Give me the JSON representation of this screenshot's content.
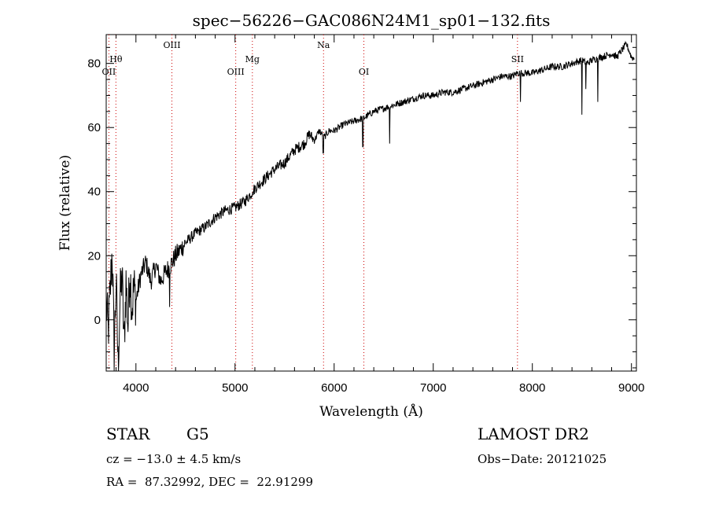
{
  "chart_data": {
    "type": "line",
    "title": "spec−56226−GAC086N24M1_sp01−132.fits",
    "xlabel": "Wavelength (Å)",
    "ylabel": "Flux (relative)",
    "xlim": [
      3700,
      9050
    ],
    "ylim": [
      -16,
      89
    ],
    "xticks": [
      4000,
      5000,
      6000,
      7000,
      8000,
      9000
    ],
    "yticks": [
      0,
      20,
      40,
      60,
      80
    ],
    "xtick_labels": [
      "4000",
      "5000",
      "6000",
      "7000",
      "8000",
      "9000"
    ],
    "ytick_labels": [
      "0",
      "20",
      "40",
      "60",
      "80"
    ],
    "line_color": "#000000",
    "marker_color": "#cc0000",
    "series": [
      {
        "x": [
          3700,
          3720,
          3740,
          3760,
          3780,
          3800,
          3820,
          3840,
          3860,
          3880,
          3900,
          3920,
          3940,
          3960,
          3980,
          4000,
          4050,
          4100,
          4150,
          4200,
          4250,
          4300,
          4350,
          4400,
          4450,
          4500,
          4600,
          4700,
          4800,
          4900,
          5000,
          5100,
          5200,
          5300,
          5400,
          5500,
          5600,
          5700,
          5750,
          5800,
          5850,
          5900,
          5950,
          6000,
          6100,
          6200,
          6300,
          6400,
          6500,
          6600,
          6700,
          6800,
          6900,
          7000,
          7100,
          7200,
          7300,
          7400,
          7500,
          7600,
          7700,
          7800,
          7850,
          7900,
          8000,
          8100,
          8200,
          8300,
          8400,
          8500,
          8550,
          8600,
          8700,
          8800,
          8850,
          8900,
          8950,
          9000,
          9050
        ],
        "y": [
          5,
          -4,
          8,
          22,
          -10,
          12,
          -14,
          6,
          14,
          -8,
          12,
          -2,
          16,
          4,
          10,
          6,
          14,
          18,
          12,
          17,
          12,
          15,
          17,
          20,
          22,
          24,
          27,
          29,
          32,
          34,
          35,
          37,
          41,
          44,
          47,
          49,
          53,
          55,
          58,
          56,
          59,
          57,
          59,
          59,
          61,
          62,
          63,
          65,
          66,
          67,
          68,
          69,
          70,
          70,
          71,
          71,
          72,
          73,
          74,
          75,
          76,
          76,
          77,
          77,
          77,
          78,
          79,
          79,
          80,
          81,
          80,
          81,
          82,
          83,
          82,
          84,
          86,
          82,
          81
        ]
      }
    ],
    "absorption_dips": [
      {
        "x": 4340,
        "y": 4
      },
      {
        "x": 5180,
        "y": 40
      },
      {
        "x": 5890,
        "y": 52
      },
      {
        "x": 6290,
        "y": 54
      },
      {
        "x": 6560,
        "y": 55
      },
      {
        "x": 7880,
        "y": 68
      },
      {
        "x": 8500,
        "y": 64
      },
      {
        "x": 8540,
        "y": 72
      },
      {
        "x": 8660,
        "y": 68
      }
    ],
    "line_markers": [
      {
        "label": "Hθ",
        "x": 3798,
        "row": 1
      },
      {
        "label": "OII",
        "x": 3727,
        "row": 0
      },
      {
        "label": "OIII",
        "x": 4363,
        "row": 2
      },
      {
        "label": "OIII",
        "x": 5007,
        "row": 0
      },
      {
        "label": "Mg",
        "x": 5175,
        "row": 1
      },
      {
        "label": "Na",
        "x": 5893,
        "row": 2
      },
      {
        "label": "OI",
        "x": 6300,
        "row": 0
      },
      {
        "label": "SII",
        "x": 7850,
        "row": 1
      }
    ]
  },
  "info": {
    "object_class": "STAR",
    "subclass": "G5",
    "survey": "LAMOST DR2",
    "cz": "cz = −13.0 ± 4.5 km/s",
    "obs_date": "Obs−Date: 20121025",
    "coords": "RA =  87.32992, DEC =  22.91299"
  }
}
